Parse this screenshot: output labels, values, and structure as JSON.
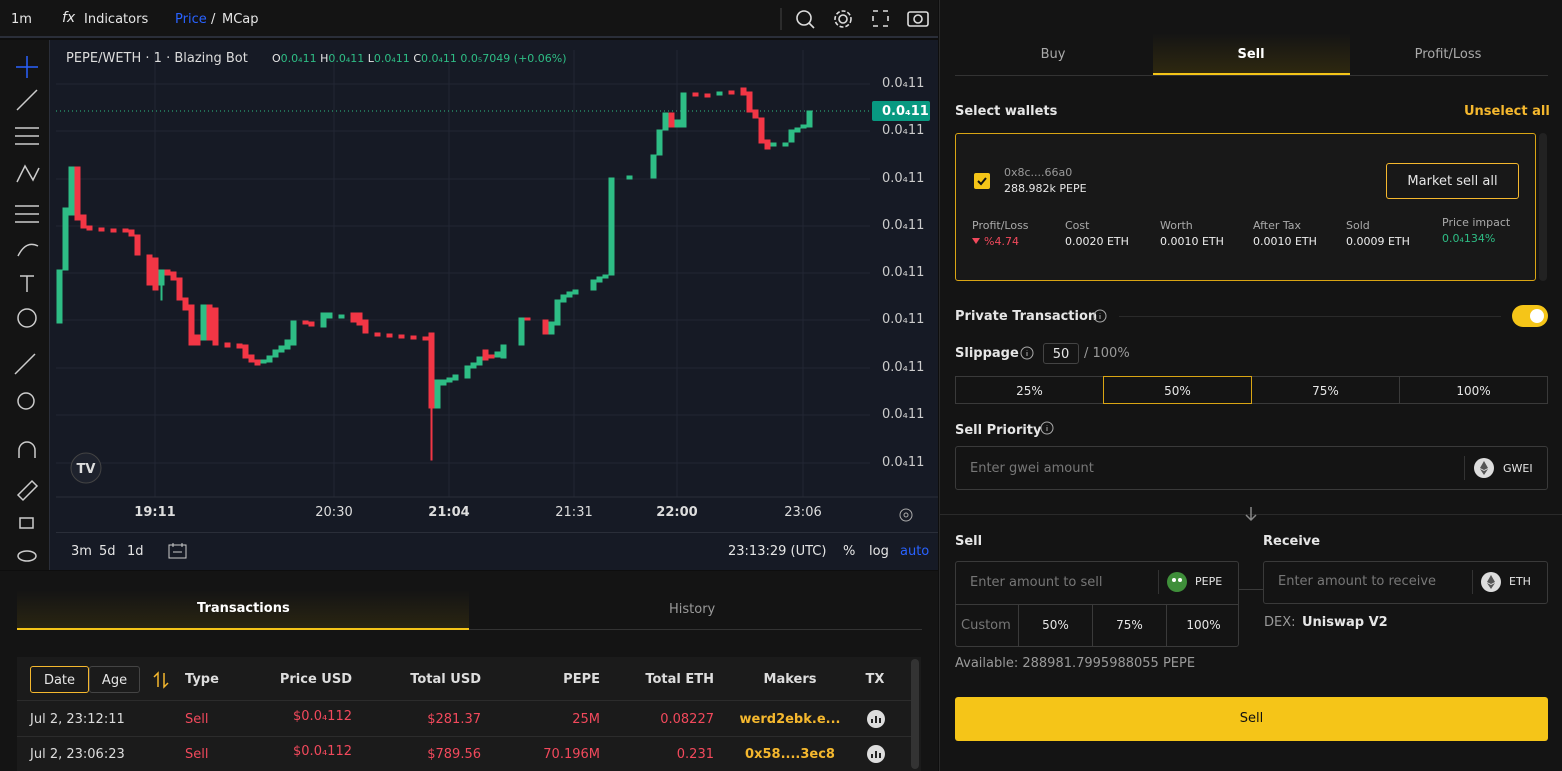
{
  "toolbar": {
    "interval": "1m",
    "indicators": "Indicators",
    "price": "Price",
    "separator": "/",
    "mcap": "MCap"
  },
  "chart": {
    "symbol": "PEPE/WETH · 1 · Blazing Bot",
    "open_label": "O",
    "open": "0.0₄11",
    "high_label": "H",
    "high": "0.0₄11",
    "low_label": "L",
    "low": "0.0₄11",
    "close_label": "C",
    "close": "0.0₄11",
    "change": "0.0₅7049 (+0.06%)",
    "price_labels": [
      "0.0₄11",
      "0.0₄11",
      "0.0₄11",
      "0.0₄11",
      "0.0₄11",
      "0.0₄11",
      "0.0₄11",
      "0.0₄11",
      "0.0₄11"
    ],
    "last_price": "0.0₄11",
    "time_labels": [
      "19:11",
      "20:30",
      "21:04",
      "21:31",
      "22:00",
      "23:06"
    ],
    "ranges": [
      "3m",
      "5d",
      "1d"
    ],
    "clock": "23:13:29 (UTC)",
    "percent": "%",
    "log": "log",
    "auto": "auto"
  },
  "bottom_tabs": [
    "Transactions",
    "History"
  ],
  "table": {
    "sort": [
      "Date",
      "Age"
    ],
    "headers": [
      "Type",
      "Price USD",
      "Total USD",
      "PEPE",
      "Total ETH",
      "Makers",
      "TX"
    ],
    "rows": [
      [
        "Jul 2, 23:12:11",
        "Sell",
        "$0.0₄112",
        "$281.37",
        "25M",
        "0.08227",
        "werd2ebk.e..."
      ],
      [
        "Jul 2, 23:06:23",
        "Sell",
        "$0.0₄112",
        "$789.56",
        "70.196M",
        "0.231",
        "0x58....3ec8"
      ]
    ]
  },
  "trade": {
    "tabs": [
      "Buy",
      "Sell",
      "Profit/Loss"
    ],
    "select_wallets": "Select wallets",
    "unselect_all": "Unselect all",
    "wallet": {
      "address": "0x8c....66a0",
      "balance": "288.982k PEPE",
      "market_sell_all": "Market sell all",
      "stats": [
        {
          "label": "Profit/Loss",
          "value": "%4.74"
        },
        {
          "label": "Cost",
          "value": "0.0020 ETH"
        },
        {
          "label": "Worth",
          "value": "0.0010 ETH"
        },
        {
          "label": "After Tax",
          "value": "0.0010 ETH"
        },
        {
          "label": "Sold",
          "value": "0.0009 ETH"
        },
        {
          "label": "Price impact",
          "value": "0.0₄134%"
        }
      ]
    },
    "private_transaction": "Private Transaction",
    "slippage": "Slippage",
    "slippage_value": "50",
    "slippage_max": "/ 100%",
    "slippage_options": [
      "25%",
      "50%",
      "75%",
      "100%"
    ],
    "sell_priority": "Sell Priority",
    "gwei_placeholder": "Enter gwei amount",
    "gwei": "GWEI",
    "sell_label": "Sell",
    "receive_label": "Receive",
    "sell_placeholder": "Enter amount to sell",
    "sell_token": "PEPE",
    "receive_placeholder": "Enter amount to receive",
    "receive_token": "ETH",
    "custom": "Custom",
    "sell_percents": [
      "50%",
      "75%",
      "100%"
    ],
    "dex_label": "DEX:",
    "dex": "Uniswap V2",
    "available": "Available: 288981.7995988055 PEPE",
    "sell_button": "Sell"
  }
}
